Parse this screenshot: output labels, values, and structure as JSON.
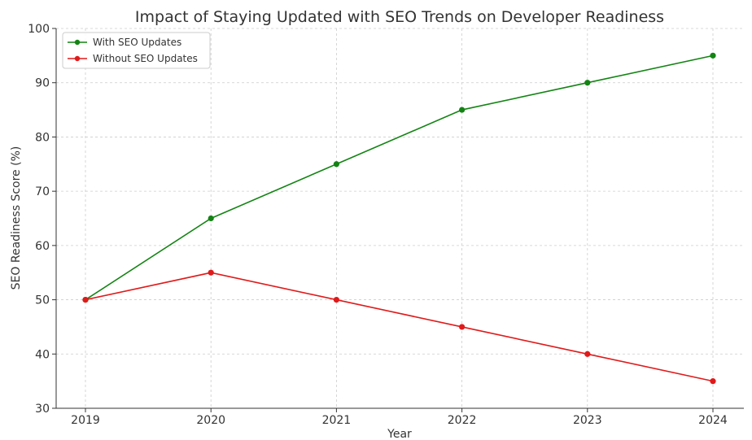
{
  "chart_data": {
    "type": "line",
    "title": "Impact of Staying Updated with SEO Trends on Developer Readiness",
    "xlabel": "Year",
    "ylabel": "SEO Readiness Score (%)",
    "categories": [
      "2019",
      "2020",
      "2021",
      "2022",
      "2023",
      "2024"
    ],
    "ylim": [
      30,
      100
    ],
    "yticks": [
      30,
      40,
      50,
      60,
      70,
      80,
      90,
      100
    ],
    "grid": true,
    "legend_position": "top-left",
    "series": [
      {
        "name": "With SEO Updates",
        "color": "#138413",
        "values": [
          50,
          65,
          75,
          85,
          90,
          95
        ]
      },
      {
        "name": "Without SEO Updates",
        "color": "#e01a1a",
        "values": [
          50,
          55,
          50,
          45,
          40,
          35
        ]
      }
    ]
  }
}
